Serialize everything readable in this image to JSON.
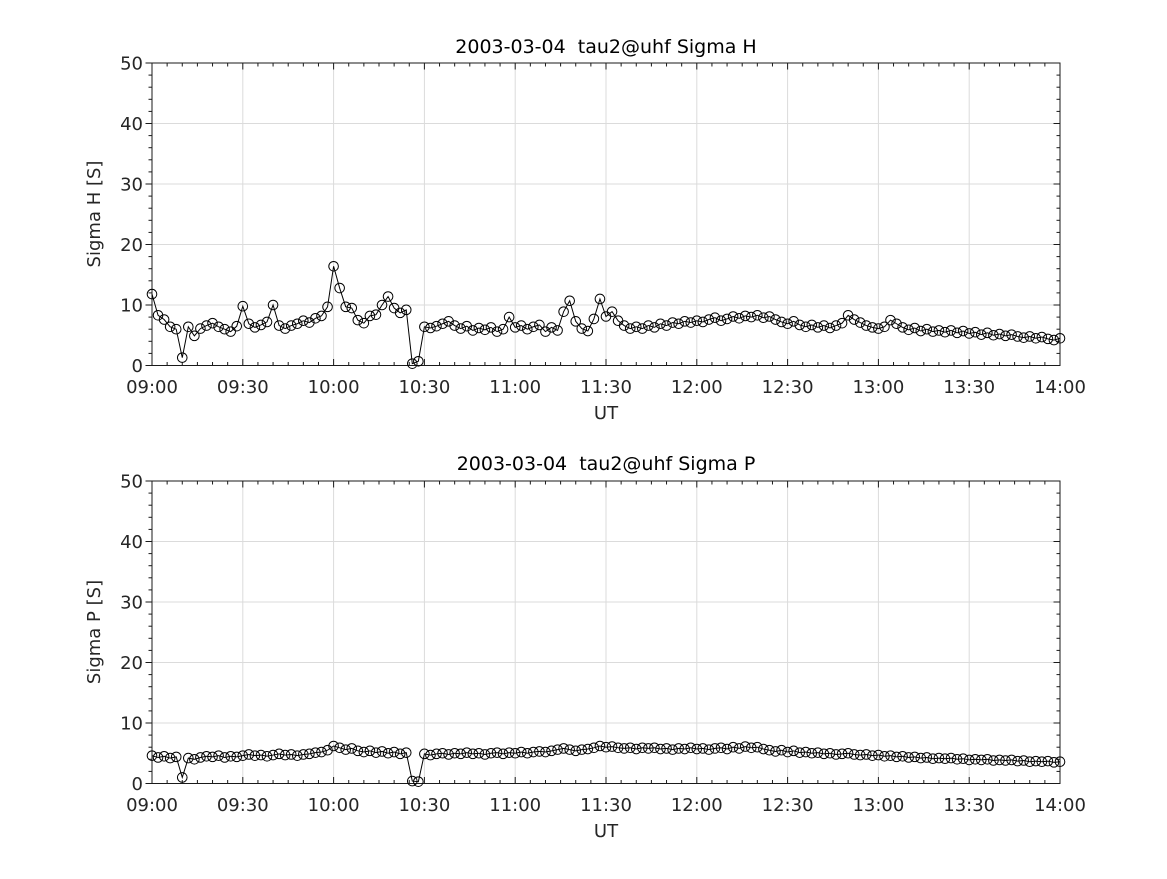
{
  "figure": {
    "background": "#ffffff"
  },
  "chart_data": [
    {
      "type": "line",
      "title": "2003-03-04  tau2@uhf Sigma H",
      "xlabel": "UT",
      "ylabel": "Sigma H [S]",
      "xlim_minutes": [
        540,
        840
      ],
      "ylim": [
        0,
        50
      ],
      "xticks": [
        "09:00",
        "09:30",
        "10:00",
        "10:30",
        "11:00",
        "11:30",
        "12:00",
        "12:30",
        "13:00",
        "13:30",
        "14:00"
      ],
      "yticks": [
        0,
        10,
        20,
        30,
        40,
        50
      ],
      "x_minor_step_min": 5,
      "y_minor_step": 2,
      "grid": true,
      "legend": "none",
      "marker": "open-circle",
      "colors": {
        "line": "#000000",
        "marker": "#000000",
        "grid": "#dbdbdb",
        "axis": "#1a1a1a",
        "text": "#262626"
      },
      "x_minutes": [
        540,
        542,
        544,
        546,
        548,
        550,
        552,
        554,
        556,
        558,
        560,
        562,
        564,
        566,
        568,
        570,
        572,
        574,
        576,
        578,
        580,
        582,
        584,
        586,
        588,
        590,
        592,
        594,
        596,
        598,
        600,
        602,
        604,
        606,
        608,
        610,
        612,
        614,
        616,
        618,
        620,
        622,
        624,
        626,
        628,
        630,
        632,
        634,
        636,
        638,
        640,
        642,
        644,
        646,
        648,
        650,
        652,
        654,
        656,
        658,
        660,
        662,
        664,
        666,
        668,
        670,
        672,
        674,
        676,
        678,
        680,
        682,
        684,
        686,
        688,
        690,
        692,
        694,
        696,
        698,
        700,
        702,
        704,
        706,
        708,
        710,
        712,
        714,
        716,
        718,
        720,
        722,
        724,
        726,
        728,
        730,
        732,
        734,
        736,
        738,
        740,
        742,
        744,
        746,
        748,
        750,
        752,
        754,
        756,
        758,
        760,
        762,
        764,
        766,
        768,
        770,
        772,
        774,
        776,
        778,
        780,
        782,
        784,
        786,
        788,
        790,
        792,
        794,
        796,
        798,
        800,
        802,
        804,
        806,
        808,
        810,
        812,
        814,
        816,
        818,
        820,
        822,
        824,
        826,
        828,
        830,
        832,
        834,
        836,
        838,
        840
      ],
      "y": [
        11.8,
        8.3,
        7.6,
        6.4,
        6.0,
        1.3,
        6.4,
        4.9,
        6.1,
        6.6,
        7.0,
        6.4,
        6.0,
        5.6,
        6.5,
        9.8,
        6.9,
        6.3,
        6.7,
        7.2,
        10.0,
        6.6,
        6.1,
        6.6,
        6.9,
        7.4,
        7.1,
        7.8,
        8.2,
        9.7,
        16.4,
        12.8,
        9.7,
        9.5,
        7.5,
        7.0,
        8.2,
        8.4,
        10.0,
        11.4,
        9.5,
        8.7,
        9.2,
        0.3,
        0.7,
        6.4,
        6.2,
        6.5,
        6.9,
        7.3,
        6.6,
        6.1,
        6.5,
        5.8,
        6.2,
        5.9,
        6.3,
        5.6,
        6.0,
        8.0,
        6.3,
        6.6,
        6.0,
        6.4,
        6.7,
        5.6,
        6.3,
        5.8,
        8.9,
        10.7,
        7.3,
        6.1,
        5.7,
        7.7,
        11.0,
        8.1,
        8.9,
        7.4,
        6.6,
        6.1,
        6.4,
        6.1,
        6.6,
        6.3,
        6.9,
        6.6,
        7.1,
        6.9,
        7.3,
        7.1,
        7.4,
        7.2,
        7.6,
        7.9,
        7.4,
        7.7,
        8.1,
        7.8,
        8.2,
        8.0,
        8.3,
        7.9,
        8.1,
        7.6,
        7.2,
        6.9,
        7.3,
        6.7,
        6.4,
        6.7,
        6.3,
        6.6,
        6.2,
        6.6,
        7.0,
        8.3,
        7.6,
        7.1,
        6.6,
        6.3,
        6.1,
        6.4,
        7.5,
        6.9,
        6.3,
        5.9,
        6.2,
        5.7,
        6.0,
        5.6,
        5.8,
        5.5,
        5.8,
        5.4,
        5.7,
        5.3,
        5.5,
        5.1,
        5.4,
        5.0,
        5.2,
        4.9,
        5.1,
        4.8,
        4.6,
        4.8,
        4.5,
        4.7,
        4.4,
        4.2,
        4.5
      ]
    },
    {
      "type": "line",
      "title": "2003-03-04  tau2@uhf Sigma P",
      "xlabel": "UT",
      "ylabel": "Sigma P [S]",
      "xlim_minutes": [
        540,
        840
      ],
      "ylim": [
        0,
        50
      ],
      "xticks": [
        "09:00",
        "09:30",
        "10:00",
        "10:30",
        "11:00",
        "11:30",
        "12:00",
        "12:30",
        "13:00",
        "13:30",
        "14:00"
      ],
      "yticks": [
        0,
        10,
        20,
        30,
        40,
        50
      ],
      "x_minor_step_min": 5,
      "y_minor_step": 2,
      "grid": true,
      "legend": "none",
      "marker": "open-circle",
      "colors": {
        "line": "#000000",
        "marker": "#000000",
        "grid": "#dbdbdb",
        "axis": "#1a1a1a",
        "text": "#262626"
      },
      "x_minutes": [
        540,
        542,
        544,
        546,
        548,
        550,
        552,
        554,
        556,
        558,
        560,
        562,
        564,
        566,
        568,
        570,
        572,
        574,
        576,
        578,
        580,
        582,
        584,
        586,
        588,
        590,
        592,
        594,
        596,
        598,
        600,
        602,
        604,
        606,
        608,
        610,
        612,
        614,
        616,
        618,
        620,
        622,
        624,
        626,
        628,
        630,
        632,
        634,
        636,
        638,
        640,
        642,
        644,
        646,
        648,
        650,
        652,
        654,
        656,
        658,
        660,
        662,
        664,
        666,
        668,
        670,
        672,
        674,
        676,
        678,
        680,
        682,
        684,
        686,
        688,
        690,
        692,
        694,
        696,
        698,
        700,
        702,
        704,
        706,
        708,
        710,
        712,
        714,
        716,
        718,
        720,
        722,
        724,
        726,
        728,
        730,
        732,
        734,
        736,
        738,
        740,
        742,
        744,
        746,
        748,
        750,
        752,
        754,
        756,
        758,
        760,
        762,
        764,
        766,
        768,
        770,
        772,
        774,
        776,
        778,
        780,
        782,
        784,
        786,
        788,
        790,
        792,
        794,
        796,
        798,
        800,
        802,
        804,
        806,
        808,
        810,
        812,
        814,
        816,
        818,
        820,
        822,
        824,
        826,
        828,
        830,
        832,
        834,
        836,
        838,
        840
      ],
      "y": [
        4.6,
        4.3,
        4.5,
        4.2,
        4.4,
        1.0,
        4.2,
        4.0,
        4.3,
        4.5,
        4.4,
        4.6,
        4.3,
        4.5,
        4.4,
        4.6,
        4.8,
        4.6,
        4.7,
        4.5,
        4.7,
        4.9,
        4.7,
        4.8,
        4.6,
        4.8,
        4.9,
        5.1,
        5.2,
        5.5,
        6.2,
        5.9,
        5.6,
        5.8,
        5.4,
        5.2,
        5.4,
        5.1,
        5.3,
        5.0,
        5.2,
        4.9,
        5.1,
        0.4,
        0.3,
        4.9,
        4.7,
        4.9,
        5.0,
        4.8,
        5.0,
        4.9,
        5.1,
        4.9,
        5.0,
        4.8,
        5.0,
        5.1,
        4.9,
        5.1,
        5.0,
        5.2,
        5.0,
        5.2,
        5.3,
        5.2,
        5.4,
        5.6,
        5.8,
        5.6,
        5.4,
        5.6,
        5.7,
        5.9,
        6.2,
        6.0,
        6.1,
        5.9,
        5.8,
        5.9,
        5.7,
        5.9,
        5.8,
        5.9,
        5.7,
        5.8,
        5.6,
        5.8,
        5.7,
        5.9,
        5.7,
        5.8,
        5.6,
        5.8,
        5.9,
        5.7,
        6.0,
        5.8,
        6.1,
        5.9,
        6.0,
        5.7,
        5.5,
        5.3,
        5.5,
        5.2,
        5.4,
        5.1,
        5.2,
        5.0,
        5.1,
        4.9,
        5.0,
        4.8,
        4.9,
        5.0,
        4.8,
        4.7,
        4.8,
        4.6,
        4.7,
        4.5,
        4.6,
        4.4,
        4.5,
        4.3,
        4.4,
        4.2,
        4.3,
        4.1,
        4.2,
        4.1,
        4.2,
        4.0,
        4.1,
        3.9,
        4.0,
        3.9,
        4.0,
        3.8,
        3.9,
        3.8,
        3.9,
        3.7,
        3.8,
        3.6,
        3.7,
        3.6,
        3.7,
        3.5,
        3.6
      ]
    }
  ]
}
